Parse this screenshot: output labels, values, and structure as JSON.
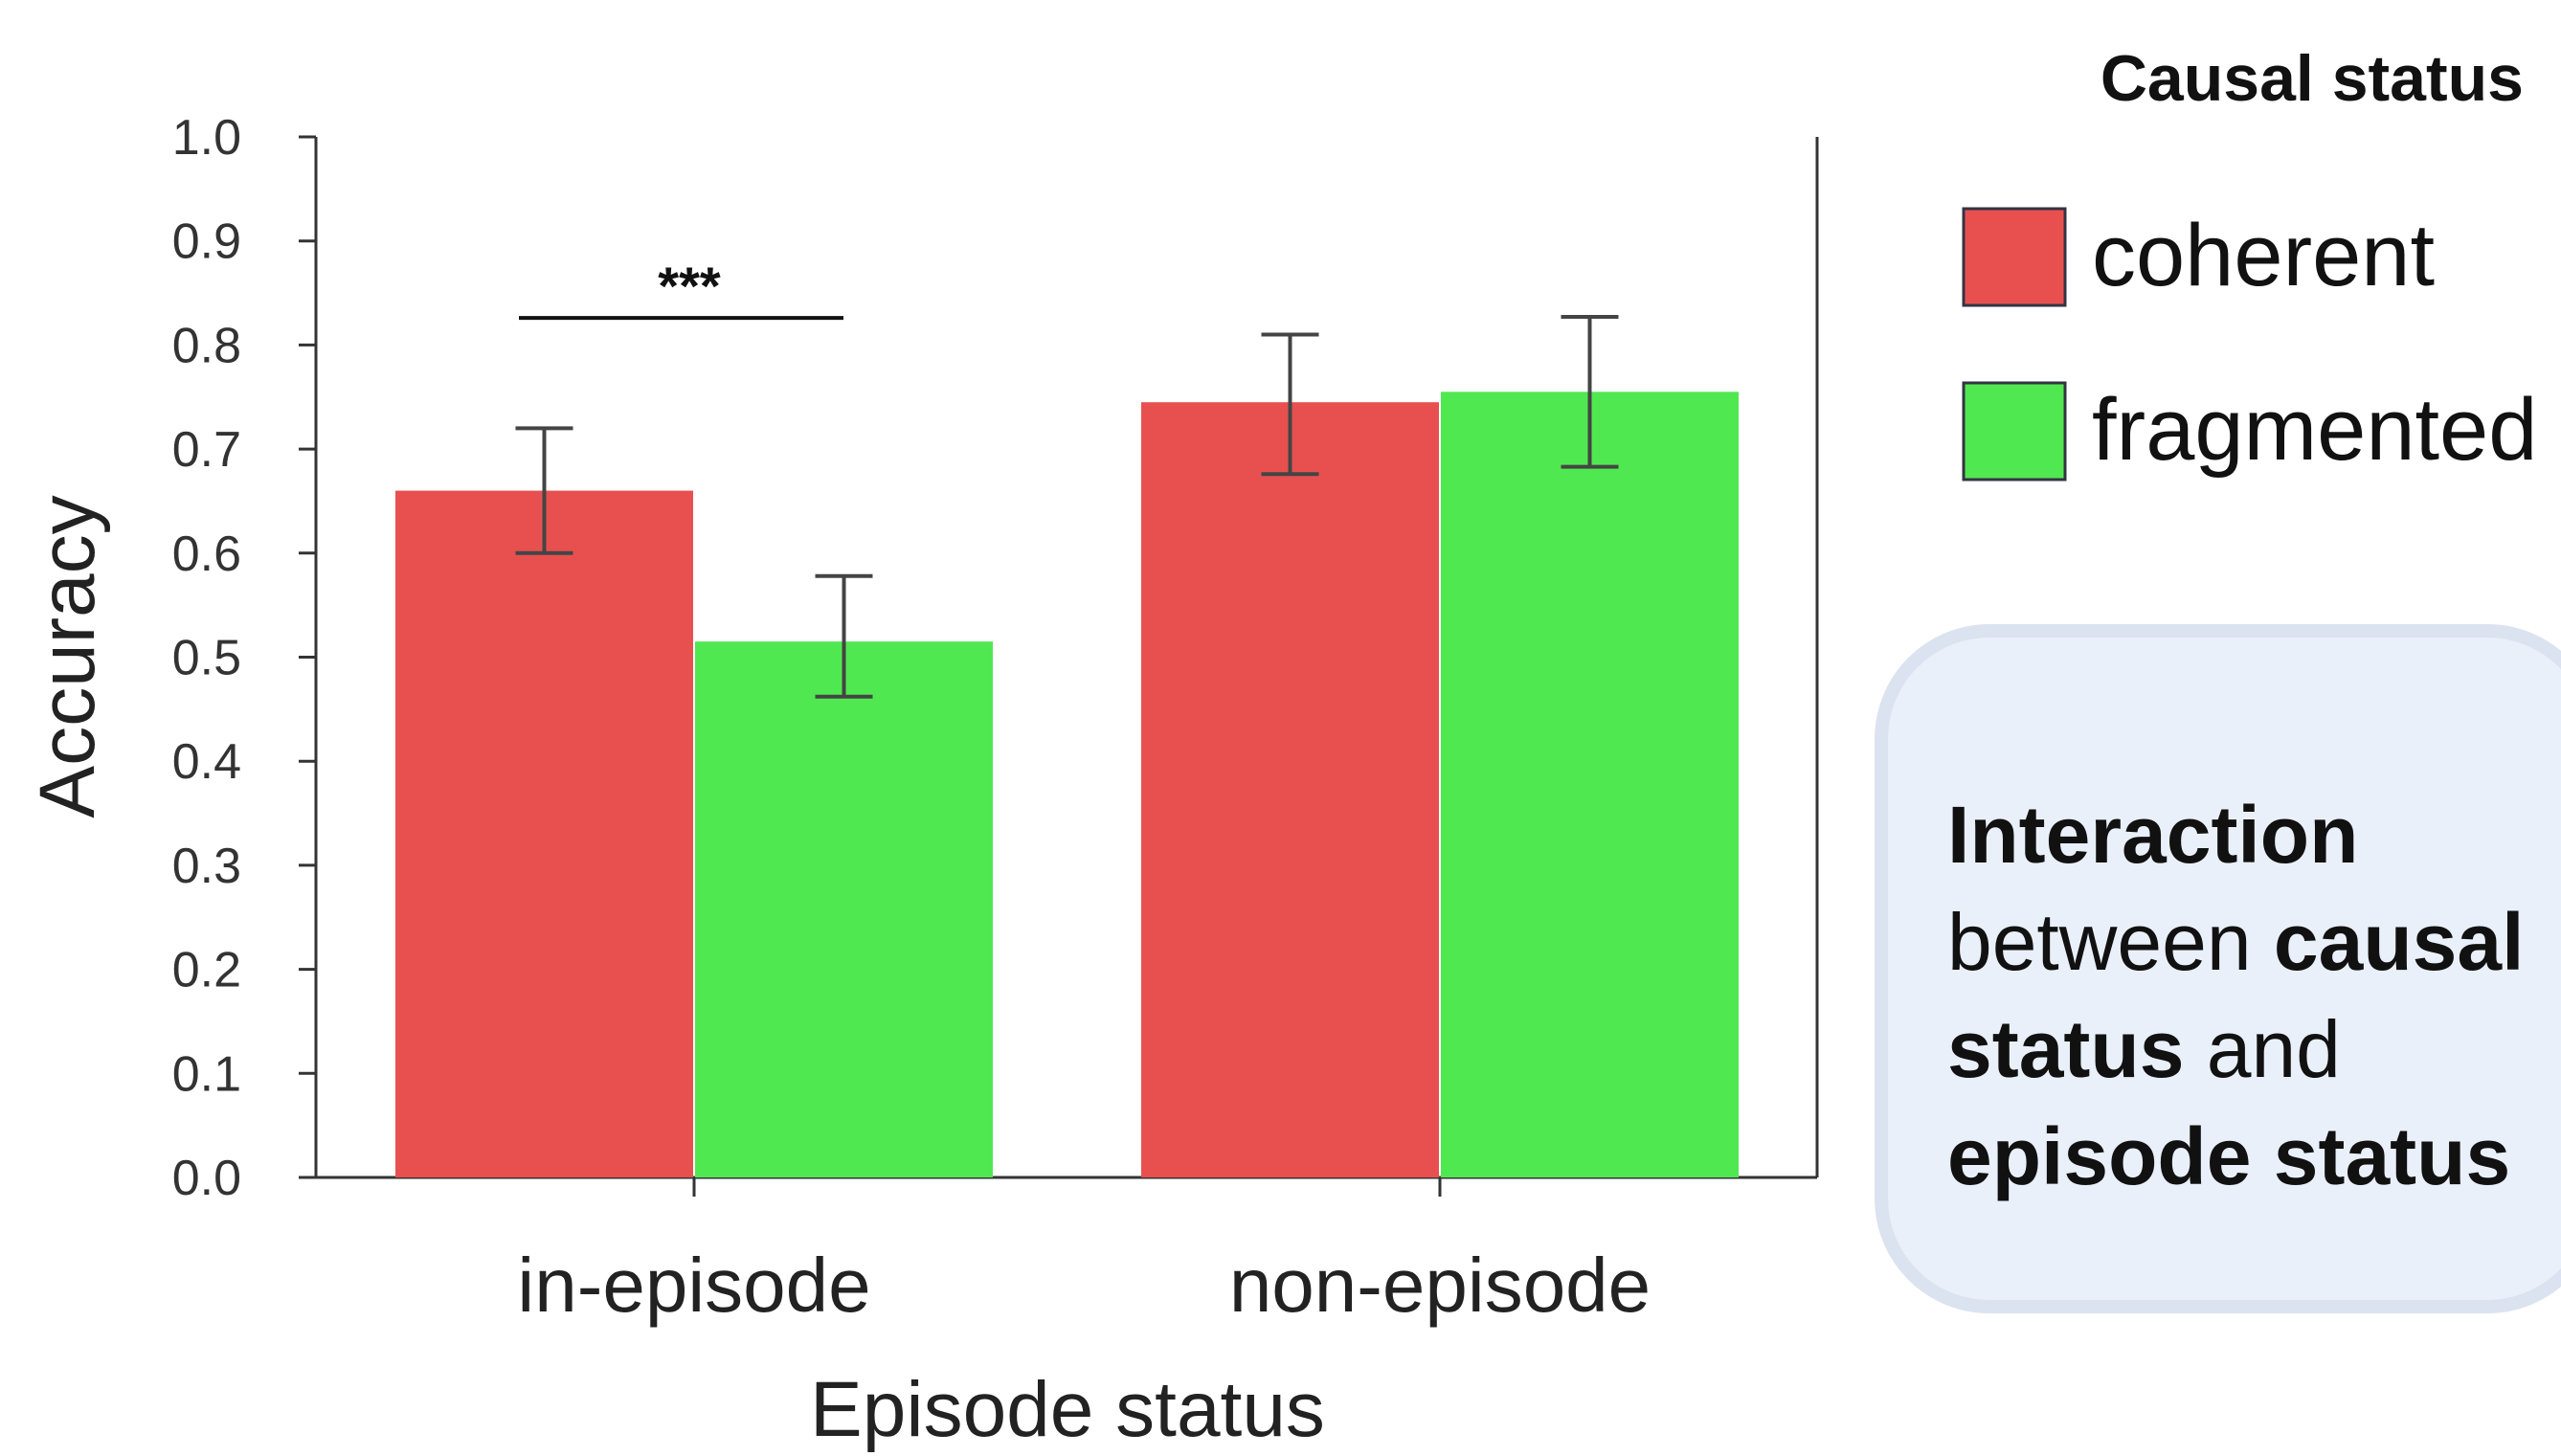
{
  "chart_data": {
    "type": "bar",
    "title": "",
    "xlabel": "Episode status",
    "ylabel": "Accuracy",
    "ylim": [
      0.0,
      1.0
    ],
    "yticks": [
      "0.0",
      "0.1",
      "0.2",
      "0.3",
      "0.4",
      "0.5",
      "0.6",
      "0.7",
      "0.8",
      "0.9",
      "1.0"
    ],
    "categories": [
      "in-episode",
      "non-episode"
    ],
    "legend_title": "Causal status",
    "legend_placement": "right",
    "grid": false,
    "series": [
      {
        "name": "coherent",
        "color": "#e85050",
        "values": [
          0.66,
          0.745
        ],
        "err_low": [
          0.6,
          0.676
        ],
        "err_high": [
          0.72,
          0.81
        ]
      },
      {
        "name": "fragmented",
        "color": "#50e850",
        "values": [
          0.515,
          0.755
        ],
        "err_low": [
          0.462,
          0.683
        ],
        "err_high": [
          0.578,
          0.827
        ]
      }
    ],
    "annotations": [
      {
        "text": "***",
        "category": "in-episode",
        "y": 0.826
      }
    ]
  },
  "note": {
    "line1_bold": "Interaction",
    "line2_plain": "between ",
    "line2_bold": "causal",
    "line3_bold": "status",
    "line3_plain": " and",
    "line4_bold": "episode status"
  }
}
